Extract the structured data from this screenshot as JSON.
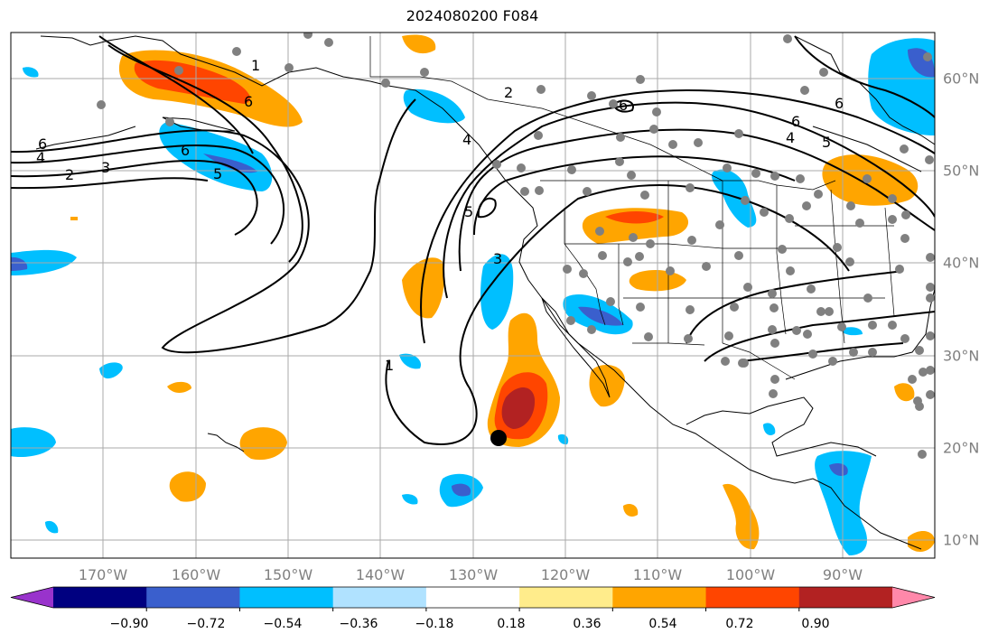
{
  "title": "2024080200 F084",
  "lon_labels": [
    {
      "text": "170°W"
    },
    {
      "text": "160°W"
    },
    {
      "text": "150°W"
    },
    {
      "text": "140°W"
    },
    {
      "text": "130°W"
    },
    {
      "text": "120°W"
    },
    {
      "text": "110°W"
    },
    {
      "text": "100°W"
    },
    {
      "text": "90°W"
    }
  ],
  "lat_labels": [
    {
      "text": "60°N"
    },
    {
      "text": "50°N"
    },
    {
      "text": "40°N"
    },
    {
      "text": "30°N"
    },
    {
      "text": "20°N"
    },
    {
      "text": "10°N"
    }
  ],
  "colorbar": {
    "colors": [
      "#9933cc",
      "#000080",
      "#3a5fcd",
      "#00bfff",
      "#b0e2ff",
      "#ffffff",
      "#ffec8b",
      "#ffa500",
      "#ff4500",
      "#b22222",
      "#ff88aa"
    ],
    "tick_labels": [
      "−0.90",
      "−0.72",
      "−0.54",
      "−0.36",
      "−0.18",
      "0.18",
      "0.36",
      "0.54",
      "0.72",
      "0.90"
    ]
  },
  "contour_labels": [
    "1",
    "2",
    "3",
    "4",
    "5",
    "6"
  ],
  "colors": {
    "land_line": "#000000",
    "grid": "#aaaaaa",
    "station": "#808080",
    "marker": "#000000"
  }
}
